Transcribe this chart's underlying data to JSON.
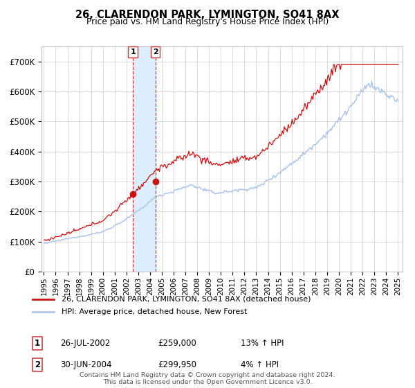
{
  "title": "26, CLARENDON PARK, LYMINGTON, SO41 8AX",
  "subtitle": "Price paid vs. HM Land Registry's House Price Index (HPI)",
  "sale1_price": 259000,
  "sale1_label": "26-JUL-2002",
  "sale1_hpi": "13% ↑ HPI",
  "sale1_t": 2002.542,
  "sale2_price": 299950,
  "sale2_label": "30-JUN-2004",
  "sale2_hpi": "4% ↑ HPI",
  "sale2_t": 2004.458,
  "legend1": "26, CLARENDON PARK, LYMINGTON, SO41 8AX (detached house)",
  "legend2": "HPI: Average price, detached house, New Forest",
  "footnote1": "Contains HM Land Registry data © Crown copyright and database right 2024.",
  "footnote2": "This data is licensed under the Open Government Licence v3.0.",
  "hpi_color": "#aec6e8",
  "price_color": "#cc1111",
  "highlight_color": "#ddeeff",
  "vline_color": "#cc3333",
  "ylim": [
    0,
    750000
  ],
  "yticks": [
    0,
    100000,
    200000,
    300000,
    400000,
    500000,
    600000,
    700000
  ],
  "ytick_labels": [
    "£0",
    "£100K",
    "£200K",
    "£300K",
    "£400K",
    "£500K",
    "£600K",
    "£700K"
  ],
  "start_year": 1995,
  "end_year": 2025
}
